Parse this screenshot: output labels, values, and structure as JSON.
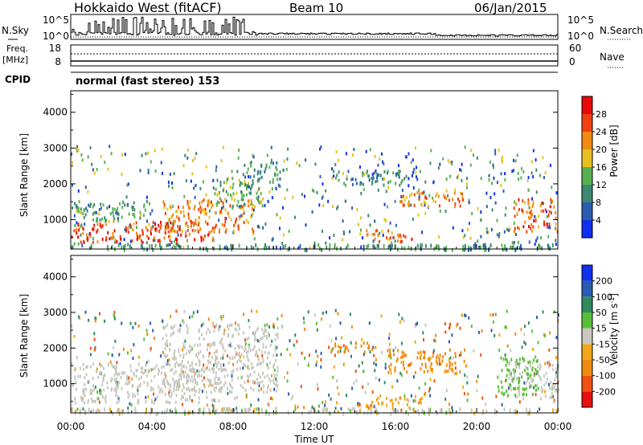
{
  "header": {
    "station": "Hokkaido West (fitACF)",
    "beam": "Beam 10",
    "date": "06/Jan/2015"
  },
  "noise_panel": {
    "left_label": "N.Sky",
    "right_label": "N.Search",
    "tick_top_left": "10^5",
    "tick_bottom_left": "10^0",
    "tick_top_right": "10^5",
    "tick_bottom_right": "10^0"
  },
  "freq_panel": {
    "left_label_line1": "Freq.",
    "left_label_line2": "[MHz]",
    "right_label": "Nave",
    "left_ticks": [
      "18",
      "8"
    ],
    "right_ticks": [
      "60",
      "0"
    ],
    "left_range": [
      8,
      18
    ],
    "right_range": [
      0,
      60
    ]
  },
  "cpid": {
    "label": "CPID",
    "value": "normal (fast stereo) 153"
  },
  "power_colorbar": {
    "label": "Power [dB]",
    "ticks": [
      "4",
      "8",
      "12",
      "16",
      "20",
      "24",
      "28"
    ],
    "colors": [
      "#1030ee",
      "#2a5cb0",
      "#3c8870",
      "#58b050",
      "#e6c020",
      "#f08a10",
      "#f04010",
      "#e80808"
    ]
  },
  "velocity_colorbar": {
    "label": "Velocity [m s",
    "label_sup": "-1",
    "label_end": "]",
    "ticks": [
      "-200",
      "-100",
      "-50",
      "-15",
      "15",
      "50",
      "100",
      "200"
    ],
    "colors": [
      "#e81010",
      "#f05010",
      "#f08a10",
      "#f0a818",
      "#c8c8c0",
      "#58c038",
      "#308a60",
      "#2a5cb0",
      "#1030ee"
    ]
  },
  "xaxis": {
    "title": "Time UT",
    "ticks": [
      "00:00",
      "04:00",
      "08:00",
      "12:00",
      "16:00",
      "20:00",
      "00:00"
    ]
  },
  "chart_data": [
    {
      "type": "heatmap",
      "title": "",
      "xlabel": "Time UT",
      "ylabel": "Slant Range [km]",
      "xlim": [
        0,
        24
      ],
      "ylim": [
        180,
        4600
      ],
      "yticks": [
        1000,
        2000,
        3000,
        4000
      ],
      "colorbar": "Power [dB]",
      "value_range": [
        0,
        30
      ],
      "regions": [
        {
          "t0": 0.0,
          "t1": 7.0,
          "r0": 400,
          "r1": 1000,
          "value": 26
        },
        {
          "t0": 0.0,
          "t1": 4.0,
          "r0": 1000,
          "r1": 1550,
          "value": 12
        },
        {
          "t0": 4.5,
          "t1": 9.0,
          "r0": 700,
          "r1": 1600,
          "value": 22
        },
        {
          "t0": 7.0,
          "t1": 9.5,
          "r0": 1400,
          "r1": 2200,
          "value": 14
        },
        {
          "t0": 8.5,
          "t1": 10.3,
          "r0": 1900,
          "r1": 2700,
          "value": 10
        },
        {
          "t0": 13.0,
          "t1": 16.5,
          "r0": 2000,
          "r1": 2400,
          "value": 10
        },
        {
          "t0": 16.0,
          "t1": 19.5,
          "r0": 1400,
          "r1": 1800,
          "value": 22
        },
        {
          "t0": 14.5,
          "t1": 17.0,
          "r0": 400,
          "r1": 750,
          "value": 24
        },
        {
          "t0": 21.8,
          "t1": 24.0,
          "r0": 700,
          "r1": 1600,
          "value": 24
        },
        {
          "t0": 18.2,
          "t1": 18.8,
          "r0": 2550,
          "r1": 2750,
          "value": 16
        }
      ]
    },
    {
      "type": "heatmap",
      "title": "",
      "xlabel": "Time UT",
      "ylabel": "Slant Range [km]",
      "xlim": [
        0,
        24
      ],
      "ylim": [
        180,
        4600
      ],
      "yticks": [
        1000,
        2000,
        3000,
        4000
      ],
      "colorbar": "Velocity [m s-1]",
      "value_range": [
        -250,
        250
      ],
      "regions": [
        {
          "t0": 0.0,
          "t1": 7.5,
          "r0": 500,
          "r1": 1600,
          "value": 0
        },
        {
          "t0": 4.5,
          "t1": 10.2,
          "r0": 800,
          "r1": 2700,
          "value": 0
        },
        {
          "t0": 1.0,
          "t1": 1.5,
          "r0": 600,
          "r1": 900,
          "value": 40
        },
        {
          "t0": 12.8,
          "t1": 15.0,
          "r0": 1900,
          "r1": 2200,
          "value": -60
        },
        {
          "t0": 15.5,
          "t1": 19.5,
          "r0": 1300,
          "r1": 2000,
          "value": -60
        },
        {
          "t0": 14.5,
          "t1": 17.5,
          "r0": 350,
          "r1": 700,
          "value": -40
        },
        {
          "t0": 21.5,
          "t1": 24.0,
          "r0": 600,
          "r1": 1700,
          "value": 0
        },
        {
          "t0": 21.0,
          "t1": 23.0,
          "r0": 700,
          "r1": 1800,
          "value": 30
        },
        {
          "t0": 18.2,
          "t1": 18.8,
          "r0": 2550,
          "r1": 2750,
          "value": -150
        }
      ]
    }
  ]
}
